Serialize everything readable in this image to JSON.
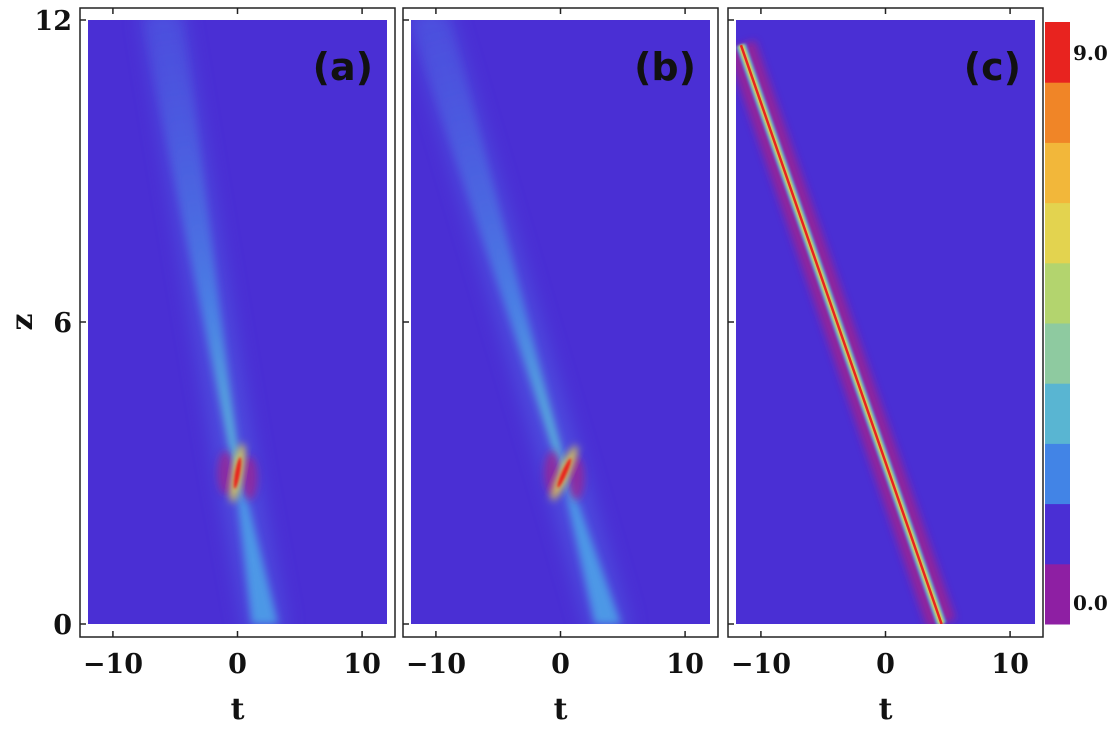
{
  "chart_data": {
    "type": "heatmap",
    "panels": [
      {
        "label": "(a)",
        "xlabel": "t",
        "ylabel": "z",
        "xlim": [
          -12,
          12
        ],
        "ylim": [
          0,
          12
        ],
        "xticks": [
          "−10",
          "0",
          "10"
        ],
        "yticks": [
          "0",
          "6",
          "12"
        ],
        "peak": {
          "t": 0,
          "z": 3.0,
          "value": 9.0
        },
        "ridge": [
          {
            "z": 0.0,
            "t": 2.2
          },
          {
            "z": 3.0,
            "t": 0.0
          },
          {
            "z": 12.0,
            "t": -6.0
          }
        ]
      },
      {
        "label": "(b)",
        "xlabel": "t",
        "ylabel": "",
        "xlim": [
          -12,
          12
        ],
        "ylim": [
          0,
          12
        ],
        "xticks": [
          "−10",
          "0",
          "10"
        ],
        "yticks": [],
        "peak": {
          "t": 0.3,
          "z": 3.0,
          "value": 9.0
        },
        "ridge": [
          {
            "z": 0.0,
            "t": 3.8
          },
          {
            "z": 3.0,
            "t": 0.3
          },
          {
            "z": 12.0,
            "t": -10.5
          }
        ]
      },
      {
        "label": "(c)",
        "xlabel": "t",
        "ylabel": "",
        "xlim": [
          -12,
          12
        ],
        "ylim": [
          0,
          12
        ],
        "xticks": [
          "−10",
          "0",
          "10"
        ],
        "yticks": [],
        "ridge": [
          {
            "z": 0.0,
            "t": 4.5
          },
          {
            "z": 11.5,
            "t": -11.6
          }
        ],
        "peak_value": 9.0
      }
    ],
    "colorbar": {
      "min_label": "0.0",
      "max_label": "9.0",
      "colors": [
        "#8e1fa3",
        "#4a2fd4",
        "#4284e6",
        "#59b5d2",
        "#8ecaa0",
        "#b3d46e",
        "#e3d34f",
        "#f2b73a",
        "#f08527",
        "#e8231f"
      ]
    },
    "grid": false
  }
}
